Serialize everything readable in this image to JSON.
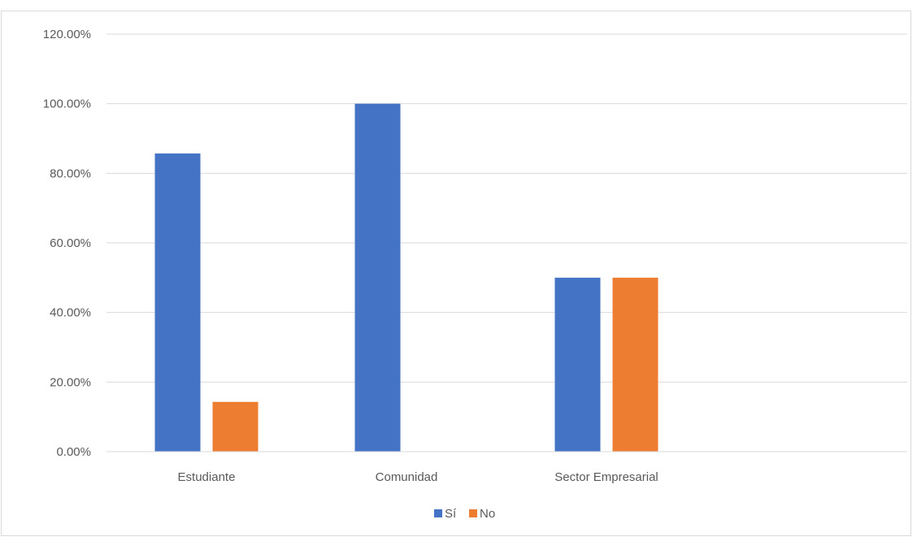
{
  "chart_data": {
    "type": "bar",
    "title": "",
    "xlabel": "",
    "ylabel": "",
    "categories": [
      "Estudiante",
      "Comunidad",
      "Sector Empresarial"
    ],
    "series": [
      {
        "name": "Sí",
        "color": "#4472C4",
        "values": [
          85.7,
          100.0,
          50.0
        ]
      },
      {
        "name": "No",
        "color": "#ED7D31",
        "values": [
          14.3,
          0.0,
          50.0
        ]
      }
    ],
    "ylim": [
      0,
      120
    ],
    "yticks": [
      "0.00%",
      "20.00%",
      "40.00%",
      "60.00%",
      "80.00%",
      "100.00%",
      "120.00%"
    ],
    "grid": true,
    "legend_position": "bottom"
  }
}
